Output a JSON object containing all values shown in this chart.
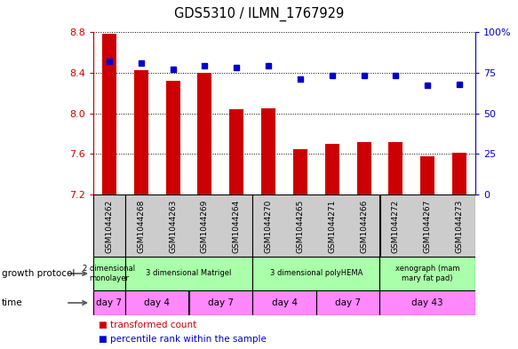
{
  "title": "GDS5310 / ILMN_1767929",
  "samples": [
    "GSM1044262",
    "GSM1044268",
    "GSM1044263",
    "GSM1044269",
    "GSM1044264",
    "GSM1044270",
    "GSM1044265",
    "GSM1044271",
    "GSM1044266",
    "GSM1044272",
    "GSM1044267",
    "GSM1044273"
  ],
  "bar_values": [
    8.78,
    8.42,
    8.32,
    8.4,
    8.04,
    8.05,
    7.65,
    7.7,
    7.72,
    7.72,
    7.58,
    7.61
  ],
  "dot_values": [
    82,
    81,
    77,
    79,
    78,
    79,
    71,
    73,
    73,
    73,
    67,
    68
  ],
  "ylim": [
    7.2,
    8.8
  ],
  "y2lim": [
    0,
    100
  ],
  "yticks": [
    7.2,
    7.6,
    8.0,
    8.4,
    8.8
  ],
  "y2ticks": [
    0,
    25,
    50,
    75,
    100
  ],
  "y2ticklabels": [
    "0",
    "25",
    "50",
    "75",
    "100%"
  ],
  "bar_color": "#cc0000",
  "dot_color": "#0000cc",
  "bar_bottom": 7.2,
  "growth_protocol_groups": [
    {
      "label": "2 dimensional\nmonolayer",
      "start": 0,
      "end": 1
    },
    {
      "label": "3 dimensional Matrigel",
      "start": 1,
      "end": 5
    },
    {
      "label": "3 dimensional polyHEMA",
      "start": 5,
      "end": 9
    },
    {
      "label": "xenograph (mam\nmary fat pad)",
      "start": 9,
      "end": 12
    }
  ],
  "time_groups": [
    {
      "label": "day 7",
      "start": 0,
      "end": 1
    },
    {
      "label": "day 4",
      "start": 1,
      "end": 3
    },
    {
      "label": "day 7",
      "start": 3,
      "end": 5
    },
    {
      "label": "day 4",
      "start": 5,
      "end": 7
    },
    {
      "label": "day 7",
      "start": 7,
      "end": 9
    },
    {
      "label": "day 43",
      "start": 9,
      "end": 12
    }
  ],
  "growth_protocol_label": "growth protocol",
  "time_label": "time",
  "legend_bar_label": "transformed count",
  "legend_dot_label": "percentile rank within the sample",
  "bar_color_legend": "#cc0000",
  "dot_color_legend": "#0000cc",
  "tick_color_left": "#cc0000",
  "tick_color_right": "#0000cc",
  "group_border_cols": [
    1,
    5,
    9
  ],
  "sample_bg_color": "#cccccc",
  "protocol_color": "#aaffaa",
  "time_color": "#ff88ff"
}
